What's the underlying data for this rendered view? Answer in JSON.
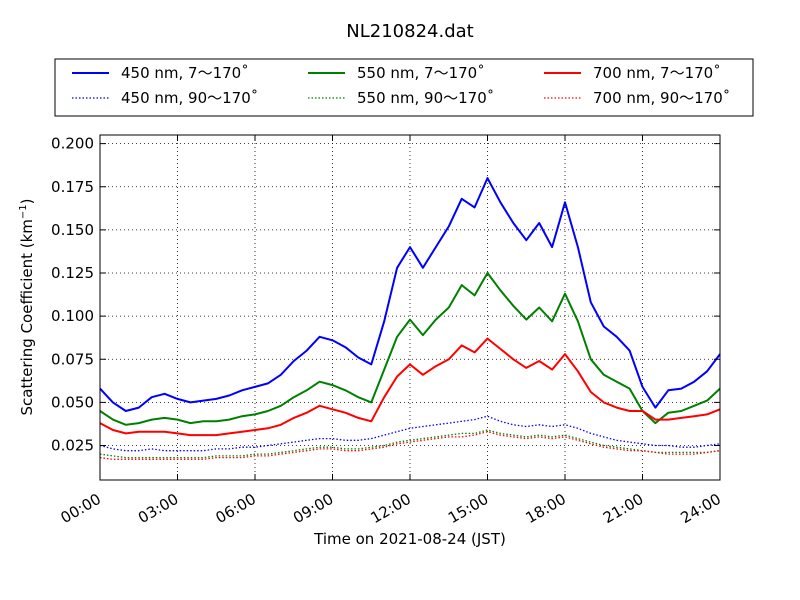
{
  "chart_data": {
    "type": "line",
    "title": "NL210824.dat",
    "xlabel": "Time on 2021-08-24 (JST)",
    "ylabel_main": "Scattering Coefficient (km",
    "ylabel_sup": "−1",
    "ylabel_close": ")",
    "xlim": [
      0,
      24
    ],
    "ylim": [
      0.005,
      0.205
    ],
    "x_ticks": [
      0,
      3,
      6,
      9,
      12,
      15,
      18,
      21,
      24
    ],
    "x_tick_labels": [
      "00:00",
      "03:00",
      "06:00",
      "09:00",
      "12:00",
      "15:00",
      "18:00",
      "21:00",
      "24:00"
    ],
    "y_ticks": [
      0.025,
      0.05,
      0.075,
      0.1,
      0.125,
      0.15,
      0.175,
      0.2
    ],
    "y_tick_labels": [
      "0.025",
      "0.050",
      "0.075",
      "0.100",
      "0.125",
      "0.150",
      "0.175",
      "0.200"
    ],
    "grid": true,
    "legend_position": "top",
    "x_hours": [
      0,
      0.5,
      1,
      1.5,
      2,
      2.5,
      3,
      3.5,
      4,
      4.5,
      5,
      5.5,
      6,
      6.5,
      7,
      7.5,
      8,
      8.5,
      9,
      9.5,
      10,
      10.5,
      11,
      11.5,
      12,
      12.5,
      13,
      13.5,
      14,
      14.5,
      15,
      15.5,
      16,
      16.5,
      17,
      17.5,
      18,
      18.5,
      19,
      19.5,
      20,
      20.5,
      21,
      21.5,
      22,
      22.5,
      23,
      23.5,
      24
    ],
    "series": [
      {
        "name": "450 nm, 7～170˚",
        "color": "#0000ff",
        "dash": "solid",
        "values": [
          0.058,
          0.05,
          0.045,
          0.047,
          0.053,
          0.055,
          0.052,
          0.05,
          0.051,
          0.052,
          0.054,
          0.057,
          0.059,
          0.061,
          0.066,
          0.074,
          0.08,
          0.088,
          0.086,
          0.082,
          0.076,
          0.072,
          0.097,
          0.128,
          0.14,
          0.128,
          0.14,
          0.152,
          0.168,
          0.163,
          0.18,
          0.166,
          0.154,
          0.144,
          0.154,
          0.14,
          0.166,
          0.14,
          0.108,
          0.094,
          0.088,
          0.08,
          0.059,
          0.047,
          0.057,
          0.058,
          0.062,
          0.068,
          0.078
        ]
      },
      {
        "name": "450 nm, 90～170˚",
        "color": "#0000ff",
        "dash": "dotted",
        "values": [
          0.025,
          0.023,
          0.022,
          0.022,
          0.023,
          0.022,
          0.022,
          0.022,
          0.022,
          0.023,
          0.023,
          0.024,
          0.024,
          0.025,
          0.026,
          0.027,
          0.028,
          0.029,
          0.029,
          0.028,
          0.028,
          0.029,
          0.031,
          0.033,
          0.035,
          0.036,
          0.037,
          0.038,
          0.039,
          0.04,
          0.042,
          0.039,
          0.037,
          0.036,
          0.037,
          0.036,
          0.037,
          0.035,
          0.032,
          0.03,
          0.028,
          0.027,
          0.026,
          0.025,
          0.025,
          0.024,
          0.024,
          0.025,
          0.026
        ]
      },
      {
        "name": "550 nm, 7～170˚",
        "color": "#008000",
        "dash": "solid",
        "values": [
          0.045,
          0.04,
          0.037,
          0.038,
          0.04,
          0.041,
          0.04,
          0.038,
          0.039,
          0.039,
          0.04,
          0.042,
          0.043,
          0.045,
          0.048,
          0.053,
          0.057,
          0.062,
          0.06,
          0.057,
          0.053,
          0.05,
          0.069,
          0.088,
          0.098,
          0.089,
          0.098,
          0.105,
          0.118,
          0.112,
          0.125,
          0.115,
          0.106,
          0.098,
          0.105,
          0.097,
          0.113,
          0.097,
          0.075,
          0.066,
          0.062,
          0.058,
          0.045,
          0.038,
          0.044,
          0.045,
          0.048,
          0.051,
          0.058
        ]
      },
      {
        "name": "550 nm, 90～170˚",
        "color": "#008000",
        "dash": "dotted",
        "values": [
          0.02,
          0.019,
          0.018,
          0.018,
          0.018,
          0.018,
          0.018,
          0.018,
          0.018,
          0.019,
          0.019,
          0.019,
          0.02,
          0.02,
          0.021,
          0.022,
          0.023,
          0.024,
          0.024,
          0.023,
          0.023,
          0.024,
          0.025,
          0.027,
          0.028,
          0.029,
          0.03,
          0.031,
          0.032,
          0.032,
          0.034,
          0.032,
          0.031,
          0.03,
          0.031,
          0.03,
          0.031,
          0.029,
          0.027,
          0.025,
          0.024,
          0.023,
          0.022,
          0.021,
          0.021,
          0.021,
          0.021,
          0.021,
          0.022
        ]
      },
      {
        "name": "700 nm, 7～170˚",
        "color": "#ff0000",
        "dash": "solid",
        "values": [
          0.038,
          0.034,
          0.032,
          0.033,
          0.033,
          0.033,
          0.032,
          0.031,
          0.031,
          0.031,
          0.032,
          0.033,
          0.034,
          0.035,
          0.037,
          0.041,
          0.044,
          0.048,
          0.046,
          0.044,
          0.041,
          0.039,
          0.053,
          0.065,
          0.072,
          0.066,
          0.071,
          0.075,
          0.083,
          0.079,
          0.087,
          0.081,
          0.075,
          0.07,
          0.074,
          0.069,
          0.078,
          0.068,
          0.056,
          0.05,
          0.047,
          0.045,
          0.045,
          0.04,
          0.04,
          0.041,
          0.042,
          0.043,
          0.046
        ]
      },
      {
        "name": "700 nm, 90～170˚",
        "color": "#ff0000",
        "dash": "dotted",
        "values": [
          0.018,
          0.017,
          0.017,
          0.017,
          0.017,
          0.017,
          0.017,
          0.017,
          0.017,
          0.018,
          0.018,
          0.018,
          0.019,
          0.019,
          0.02,
          0.021,
          0.022,
          0.023,
          0.023,
          0.022,
          0.022,
          0.023,
          0.024,
          0.026,
          0.027,
          0.028,
          0.029,
          0.03,
          0.03,
          0.031,
          0.033,
          0.031,
          0.03,
          0.029,
          0.03,
          0.029,
          0.03,
          0.028,
          0.026,
          0.024,
          0.023,
          0.022,
          0.022,
          0.021,
          0.02,
          0.02,
          0.02,
          0.021,
          0.022
        ]
      }
    ]
  }
}
